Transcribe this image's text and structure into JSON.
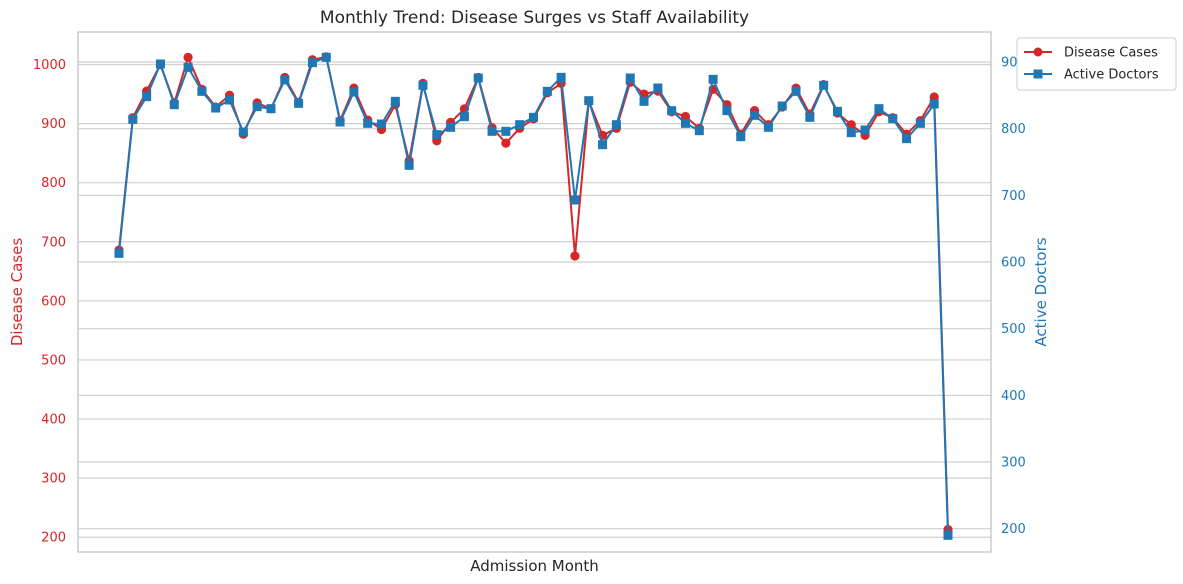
{
  "chart_data": {
    "type": "line",
    "title": "Monthly Trend: Disease Surges vs Staff Availability",
    "xlabel": "Admission Month",
    "x_tick_labels_shown": false,
    "colors": {
      "left": "#d62728",
      "right": "#1f77b4",
      "grid": "#cfcfcf",
      "frame": "#bfbfbf"
    },
    "grid": true,
    "legend_position": "outside top-right",
    "y_left": {
      "label": "Disease Cases",
      "range": [
        175,
        1055
      ],
      "ticks": [
        200,
        300,
        400,
        500,
        600,
        700,
        800,
        900,
        1000
      ]
    },
    "y_right": {
      "label": "Active Doctors",
      "range": [
        165,
        945
      ],
      "ticks": [
        200,
        300,
        400,
        500,
        600,
        700,
        800,
        900
      ]
    },
    "series": [
      {
        "name": "Disease Cases",
        "axis": "left",
        "marker": "circle",
        "values": [
          686,
          910,
          955,
          1000,
          935,
          1012,
          958,
          928,
          948,
          882,
          935,
          925,
          978,
          936,
          1008,
          1013,
          905,
          960,
          906,
          890,
          932,
          837,
          968,
          871,
          902,
          925,
          978,
          893,
          867,
          892,
          908,
          952,
          968,
          676,
          938,
          880,
          892,
          970,
          950,
          955,
          920,
          912,
          892,
          958,
          932,
          882,
          922,
          898,
          928,
          960,
          916,
          966,
          918,
          898,
          880,
          920,
          910,
          882,
          905,
          945,
          213
        ]
      },
      {
        "name": "Active Doctors",
        "axis": "right",
        "marker": "square",
        "values": [
          613,
          814,
          848,
          897,
          836,
          892,
          856,
          831,
          843,
          795,
          833,
          830,
          873,
          838,
          899,
          907,
          810,
          855,
          808,
          807,
          841,
          745,
          865,
          791,
          802,
          818,
          876,
          796,
          796,
          806,
          817,
          856,
          877,
          693,
          842,
          776,
          806,
          876,
          841,
          861,
          827,
          808,
          797,
          874,
          827,
          788,
          820,
          802,
          834,
          856,
          817,
          865,
          826,
          794,
          798,
          830,
          815,
          785,
          808,
          837,
          190
        ]
      }
    ]
  }
}
